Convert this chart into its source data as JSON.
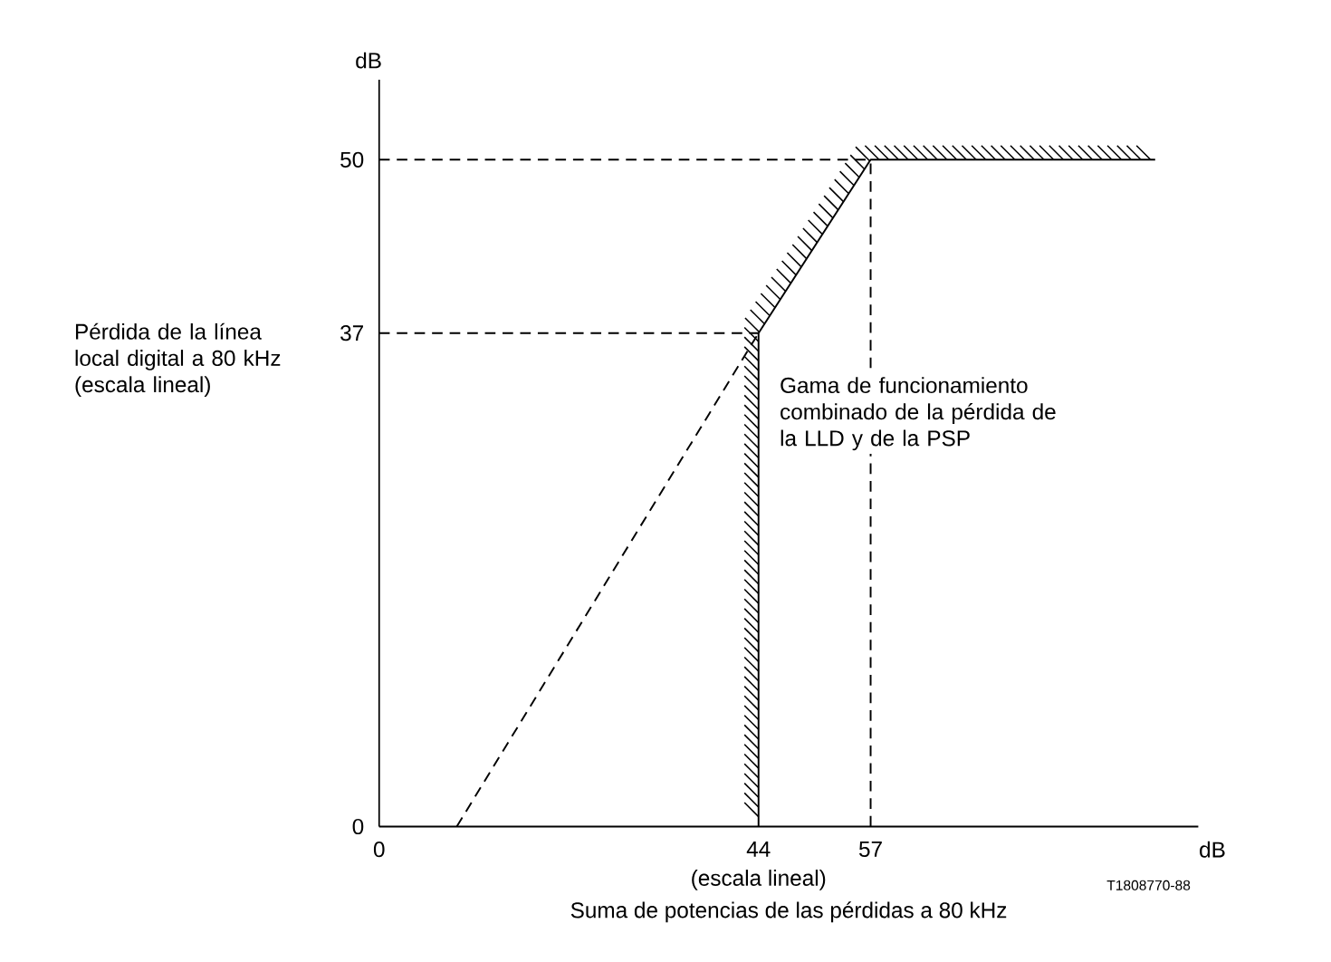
{
  "chart_data": {
    "type": "line",
    "xlabel": "Suma de potencias de las pérdidas a 80 kHz",
    "ylabel": "Pérdida de la línea local digital a 80 kHz (escala lineal)",
    "annotations": [
      "dB",
      "dB",
      "(escala lineal)",
      "Gama de funcionamiento combinado de la pérdida de la LLD y de la PSP",
      "T1808770-88"
    ],
    "xlim": [
      0,
      95
    ],
    "ylim": [
      0,
      56
    ],
    "xticks": [
      0,
      44,
      57
    ],
    "yticks": [
      0,
      37,
      50
    ],
    "series": [
      {
        "color": "#000000",
        "x": [
          44,
          44,
          57,
          90
        ],
        "values": [
          0,
          37,
          50,
          50
        ],
        "line_style": "solid"
      },
      {
        "color": "#000000",
        "x": [
          9,
          44
        ],
        "values": [
          0,
          37
        ],
        "line_style": "dashed"
      },
      {
        "color": "#000000",
        "x": [
          0,
          44
        ],
        "values": [
          37,
          37
        ],
        "line_style": "dashed"
      },
      {
        "color": "#000000",
        "x": [
          0,
          57
        ],
        "values": [
          50,
          50
        ],
        "line_style": "dashed"
      },
      {
        "color": "#000000",
        "x": [
          57,
          57
        ],
        "values": [
          0,
          50
        ],
        "line_style": "dashed"
      }
    ]
  }
}
